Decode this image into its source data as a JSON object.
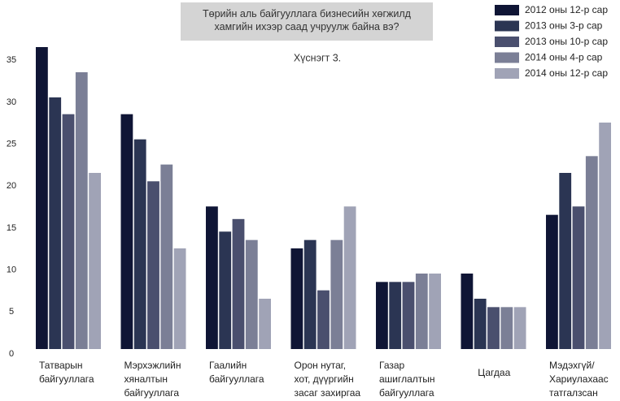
{
  "chart_data": {
    "type": "bar",
    "title": "Төрийн аль байгууллага бизнесийн хөгжилд\nхамгийн ихээр саад учруулж байна вэ?",
    "subtitle": "Хүснэгт 3.",
    "categories": [
      "Татварын\nбайгууллага",
      "Мэрхэжлийн\nхяналтын\nбайгууллага",
      "Гаалийн\nбайгууллага",
      "Орон нутаг,\nхот, дүүргийн\nзасаг захиргаа",
      "Газар\nашиглалтын\nбайгууллага",
      "Цагдаа",
      "Мэдэхгүй/\nХариулахаас\nтатгалзсан"
    ],
    "series": [
      {
        "name": "2012 оны 12-р сар",
        "color": "#0f1535",
        "values": [
          36,
          28,
          17,
          12,
          8,
          9,
          16
        ]
      },
      {
        "name": "2013 оны 3-р сар",
        "color": "#2b3553",
        "values": [
          30,
          25,
          14,
          13,
          8,
          6,
          21
        ]
      },
      {
        "name": "2013 оны 10-р сар",
        "color": "#4a4f6e",
        "values": [
          28,
          20,
          15.5,
          7,
          8,
          5,
          17
        ]
      },
      {
        "name": "2014 оны 4-р сар",
        "color": "#7b7f96",
        "values": [
          33,
          22,
          13,
          13,
          9,
          5,
          23
        ]
      },
      {
        "name": "2014 оны 12-р сар",
        "color": "#a0a3b6",
        "values": [
          21,
          12,
          6,
          17,
          9,
          5,
          27
        ]
      }
    ],
    "ylim": [
      0,
      36
    ],
    "yticks": [
      0,
      5,
      10,
      15,
      20,
      25,
      30,
      35
    ],
    "legend": "upper right"
  }
}
